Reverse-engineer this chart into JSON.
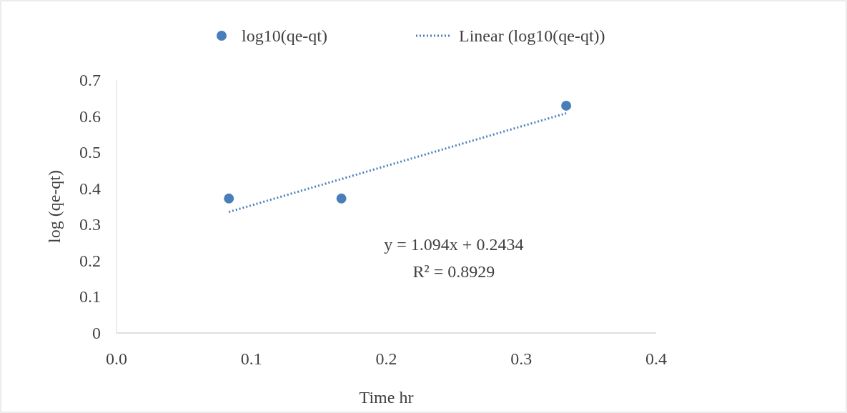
{
  "chart_data": {
    "type": "scatter",
    "xlabel": "Time hr",
    "ylabel": "log (qe-qt)",
    "xlim": [
      0,
      0.4
    ],
    "xticks": [
      {
        "value": 0,
        "label": "0.0"
      },
      0.1,
      0.2,
      0.3,
      0.4
    ],
    "ylim": [
      0,
      0.7
    ],
    "yticks": [
      0,
      0.1,
      0.2,
      0.3,
      0.4,
      0.5,
      0.6,
      0.7
    ],
    "grid": false,
    "legend": "top",
    "series": [
      {
        "name": "log10(qe-qt)",
        "color": "#4a7ebb",
        "marker": "circle",
        "x": [
          0.0833,
          0.1667,
          0.3333
        ],
        "values": [
          0.372,
          0.372,
          0.629
        ]
      },
      {
        "type": "line",
        "name": "Linear (log10(qe-qt))",
        "color": "#4a7ebb",
        "marker": "none",
        "line_style": "dotted",
        "x": [
          0.0833,
          0.3333
        ],
        "values": [
          0.335,
          0.608
        ]
      }
    ],
    "annotations": [
      "y = 1.094x + 0.2434",
      "R² = 0.8929"
    ]
  }
}
